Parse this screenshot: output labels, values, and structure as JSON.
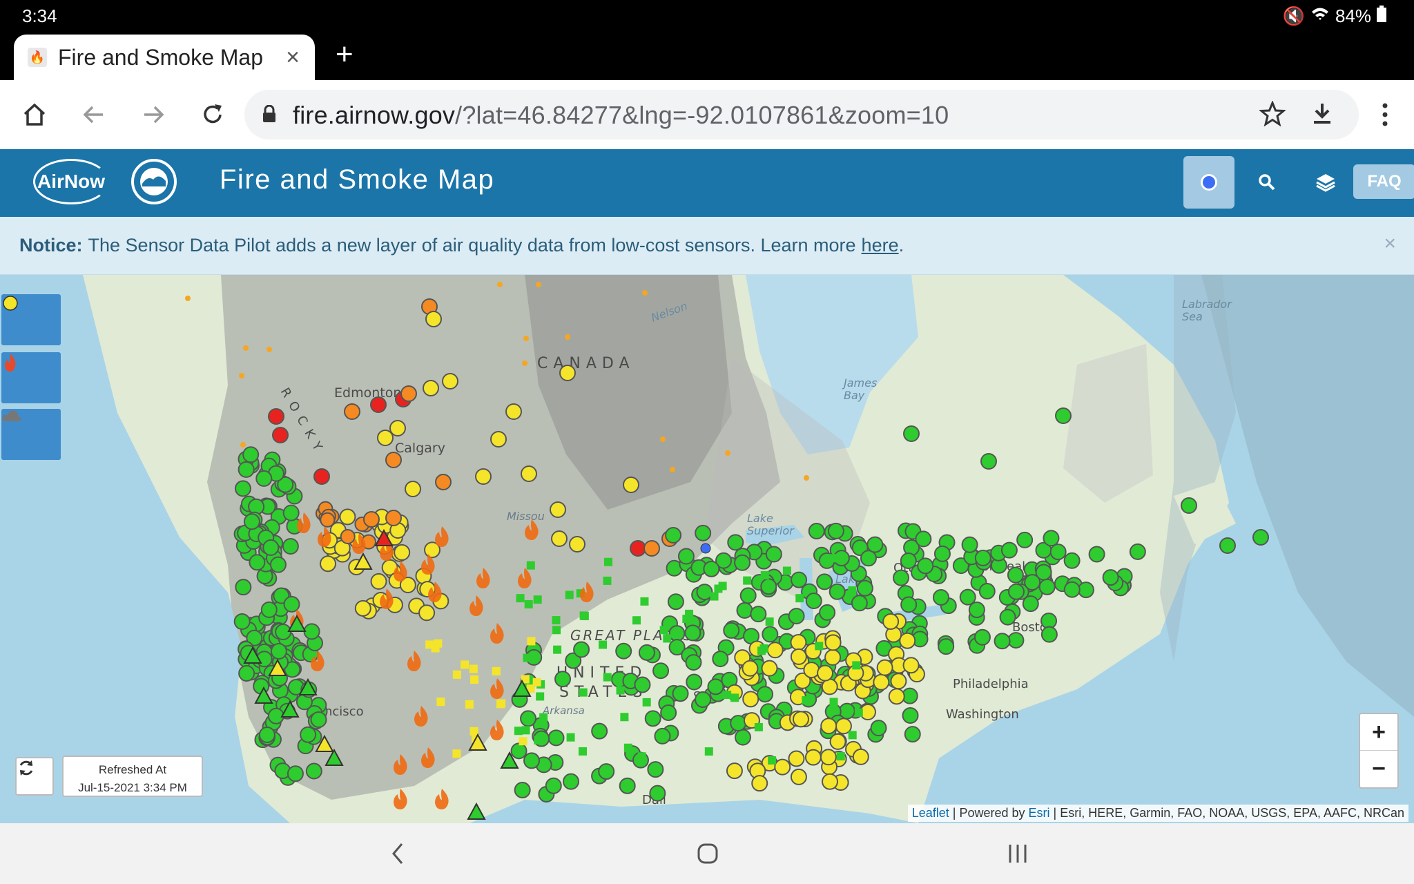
{
  "status_bar": {
    "time": "3:34",
    "battery": "84%"
  },
  "browser": {
    "tab_title": "Fire and Smoke Map",
    "url_host": "fire.airnow.gov",
    "url_rest": "/?lat=46.84277&lng=-92.0107861&zoom=10"
  },
  "app": {
    "logo_text": "AirNow",
    "title": "Fire and Smoke Map",
    "faq_label": "FAQ"
  },
  "notice": {
    "label": "Notice:",
    "text": "The Sensor Data Pilot adds a new layer of air quality data from low-cost sensors. Learn more",
    "link_text": "here",
    "trail": ".",
    "close": "×"
  },
  "map": {
    "labels": {
      "canada": "CANADA",
      "edmonton": "Edmonton",
      "calgary": "Calgary",
      "rocky": "ROCKY",
      "nelson": "Nelson",
      "james_bay": "James Bay",
      "labrador_sea": "Labrador Sea",
      "lake_superior": "Lake Superior",
      "lake_huron": "Lake Huron",
      "ottawa": "Ottawa",
      "montreal": "Montreal",
      "boston": "Boston",
      "philadelphia": "Philadelphia",
      "washington": "Washington",
      "great_plains": "GREAT PLAINS",
      "united": "UNITED",
      "states": "STATES",
      "st_louis": "St Lo",
      "san_francisco": "ncisco",
      "missouri": "Missou",
      "dallas": "Dall",
      "arkansas": "Arkansa"
    },
    "refreshed_label": "Refreshed At",
    "refreshed_time": "Jul-15-2021 3:34 PM",
    "zoom_in": "+",
    "zoom_out": "−",
    "attribution": {
      "leaflet": "Leaflet",
      "powered": "| Powered by",
      "esri": "Esri",
      "sources": "| Esri, HERE, Garmin, FAO, NOAA, USGS, EPA, AAFC, NRCan"
    },
    "colors": {
      "good": "#2ecc2e",
      "moderate": "#f5e52a",
      "usg": "#f58a22",
      "unhealthy": "#e8231f",
      "fire": "#f06a12"
    }
  }
}
